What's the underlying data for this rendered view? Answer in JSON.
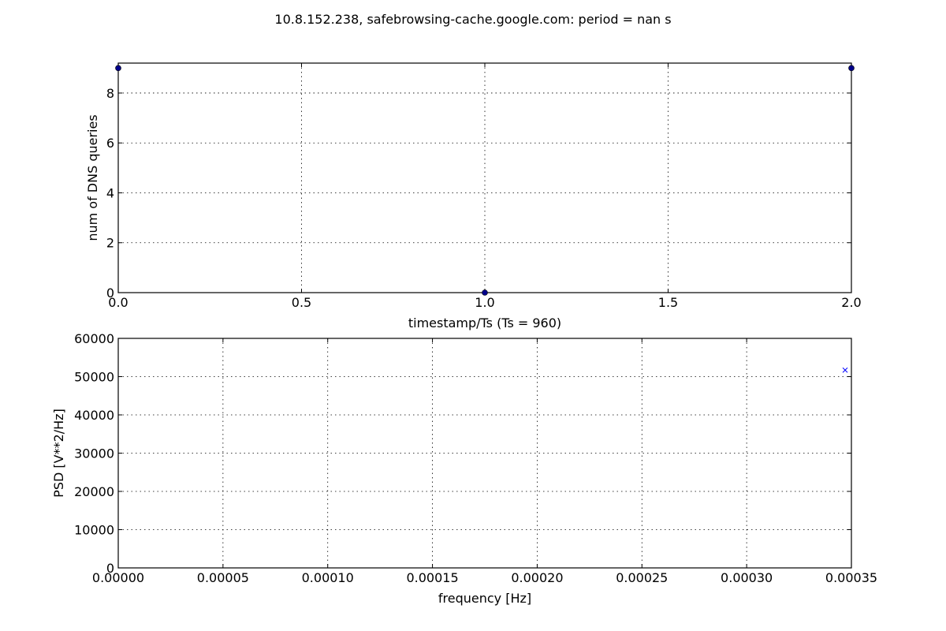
{
  "figure_title": "10.8.152.238, safebrowsing-cache.google.com: period = nan s",
  "chart_data": [
    {
      "type": "scatter",
      "xlabel": "timestamp/Ts (Ts = 960)",
      "ylabel": "num of DNS queries",
      "xlim": [
        0,
        2
      ],
      "ylim": [
        0,
        9.2
      ],
      "xticks": [
        0,
        0.5,
        1,
        1.5,
        2
      ],
      "xtick_labels": [
        "0.0",
        "0.5",
        "1.0",
        "1.5",
        "2.0"
      ],
      "yticks": [
        0,
        2,
        4,
        6,
        8
      ],
      "ytick_labels": [
        "0",
        "2",
        "4",
        "6",
        "8"
      ],
      "grid": true,
      "marker": "circle",
      "color": "#00008b",
      "x": [
        0,
        1,
        2
      ],
      "y": [
        9,
        0,
        9
      ]
    },
    {
      "type": "scatter",
      "xlabel": "frequency [Hz]",
      "ylabel": "PSD [V**2/Hz]",
      "xlim": [
        0,
        0.00035
      ],
      "ylim": [
        0,
        60000
      ],
      "xticks": [
        0,
        5e-05,
        0.0001,
        0.00015,
        0.0002,
        0.00025,
        0.0003,
        0.00035
      ],
      "xtick_labels": [
        "0.00000",
        "0.00005",
        "0.00010",
        "0.00015",
        "0.00020",
        "0.00025",
        "0.00030",
        "0.00035"
      ],
      "yticks": [
        0,
        10000,
        20000,
        30000,
        40000,
        50000,
        60000
      ],
      "ytick_labels": [
        "0",
        "10000",
        "20000",
        "30000",
        "40000",
        "50000",
        "60000"
      ],
      "grid": true,
      "marker": "x",
      "color": "#0000ff",
      "x": [
        0.000347
      ],
      "y": [
        51700
      ]
    }
  ]
}
